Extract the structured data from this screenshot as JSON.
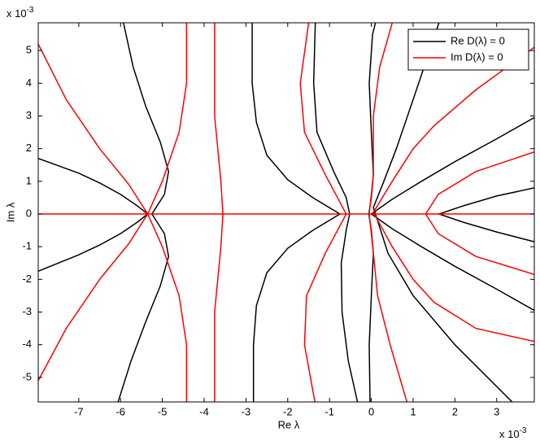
{
  "chart_data": {
    "type": "contour",
    "x_label": "Re λ",
    "y_label": "Im λ",
    "x_multiplier": {
      "base": "x 10",
      "exponent": "-3"
    },
    "y_multiplier": {
      "base": "x 10",
      "exponent": "-3"
    },
    "xlim": [
      -7.97,
      3.9
    ],
    "ylim": [
      -5.75,
      5.85
    ],
    "xticks": [
      -7,
      -6,
      -5,
      -4,
      -3,
      -2,
      -1,
      0,
      1,
      2,
      3
    ],
    "yticks": [
      -5,
      -4,
      -3,
      -2,
      -1,
      0,
      1,
      2,
      3,
      4,
      5
    ],
    "legend": "top-right",
    "series": [
      {
        "name": "Re D(λ) = 0",
        "color": "#000000",
        "curves": [
          {
            "x": [
              -7.97,
              -7,
              -6.5,
              -6,
              -5.6,
              -5.35,
              -5.6,
              -6,
              -6.5,
              -7,
              -7.97
            ],
            "y": [
              1.7,
              1.25,
              0.95,
              0.6,
              0.25,
              0,
              -0.25,
              -0.6,
              -0.95,
              -1.25,
              -1.75
            ]
          },
          {
            "x": [
              -5.93,
              -5.7,
              -5.4,
              -5.05,
              -4.85,
              -4.95,
              -5.25,
              -4.95,
              -4.85,
              -5.05,
              -5.4,
              -5.75,
              -6.06
            ],
            "y": [
              5.85,
              4.5,
              3.3,
              2.2,
              1.3,
              0.6,
              0,
              -0.6,
              -1.3,
              -2.2,
              -3.3,
              -4.5,
              -5.75
            ]
          },
          {
            "x": [
              -2.85,
              -2.85,
              -2.75,
              -2.5,
              -2,
              -1.4,
              -0.75,
              -1.4,
              -2,
              -2.5,
              -2.75,
              -2.82,
              -2.82
            ],
            "y": [
              5.85,
              4,
              2.8,
              1.8,
              1.05,
              0.5,
              0,
              -0.5,
              -1.05,
              -1.8,
              -2.8,
              -4,
              -5.75
            ]
          },
          {
            "x": [
              -1.34,
              -1.38,
              -1.3,
              -0.9,
              -0.6,
              -0.52,
              -0.6,
              -0.72,
              -0.7,
              -0.55,
              -0.33
            ],
            "y": [
              5.85,
              4,
              2.5,
              1.3,
              0.5,
              0,
              -0.5,
              -1.5,
              -3,
              -4.5,
              -5.75
            ]
          },
          {
            "x": [
              0.1,
              0.03,
              -0.05,
              0,
              0.05,
              0,
              -0.06,
              0,
              0.05,
              0,
              -0.05,
              -0.03
            ],
            "y": [
              5.85,
              5.5,
              4,
              2.5,
              1.2,
              0.5,
              0,
              -0.5,
              -1.2,
              -2.5,
              -4,
              -5.75
            ]
          },
          {
            "x": [
              1.62,
              1,
              0.6,
              0.3,
              0.05,
              0.4,
              1,
              2,
              3.37
            ],
            "y": [
              5.85,
              3.5,
              2,
              1,
              0.2,
              -1.2,
              -2.5,
              -4,
              -5.75
            ]
          },
          {
            "x": [
              3.9,
              3,
              2,
              1.2,
              0.5,
              0,
              0.5,
              1.2,
              2,
              3,
              3.9
            ],
            "y": [
              2.95,
              2.3,
              1.6,
              1,
              0.45,
              0,
              -0.45,
              -1,
              -1.6,
              -2.3,
              -2.95
            ]
          },
          {
            "x": [
              3.9,
              3,
              2.2,
              1.62,
              2.2,
              3,
              3.9
            ],
            "y": [
              0.8,
              0.55,
              0.25,
              0,
              -0.25,
              -0.55,
              -0.85
            ]
          }
        ]
      },
      {
        "name": "Im D(λ) = 0",
        "color": "#ff0000",
        "curves": [
          {
            "x": [
              -7.97,
              3.9
            ],
            "y": [
              0,
              0
            ]
          },
          {
            "x": [
              -7.97,
              -7.3,
              -6.5,
              -5.8,
              -5.35,
              -5.8,
              -6.5,
              -7.3,
              -7.97
            ],
            "y": [
              5.2,
              3.5,
              2,
              0.9,
              0,
              -0.9,
              -2,
              -3.5,
              -5.1
            ]
          },
          {
            "x": [
              -4.42,
              -4.42,
              -4.6,
              -5,
              -5.35,
              -5,
              -4.6,
              -4.42,
              -4.42
            ],
            "y": [
              5.85,
              4,
              2.5,
              1,
              0,
              -1,
              -2.5,
              -4,
              -5.75
            ]
          },
          {
            "x": [
              -3.75,
              -3.75,
              -3.6,
              -3.55,
              -3.6,
              -3.75,
              -3.75
            ],
            "y": [
              5.85,
              3,
              1,
              0,
              -1,
              -3,
              -5.75
            ]
          },
          {
            "x": [
              -1.5,
              -1.7,
              -1.6,
              -1.1,
              -0.6,
              -1.1,
              -1.55,
              -1.6,
              -1.35
            ],
            "y": [
              5.85,
              4,
              2.5,
              1.2,
              0,
              -1.2,
              -2.5,
              -4,
              -5.75
            ]
          },
          {
            "x": [
              0.5,
              0.2,
              0.05,
              0.05,
              -0.05,
              0.05,
              0.15,
              0.45,
              0.85
            ],
            "y": [
              5.85,
              4.5,
              3,
              1.2,
              0,
              -1.2,
              -2.5,
              -4,
              -5.75
            ]
          },
          {
            "x": [
              3.9,
              2.5,
              1.5,
              1,
              0.5,
              0.05,
              0.5,
              1,
              1.5,
              2.5,
              3.9
            ],
            "y": [
              5.1,
              3.8,
              2.7,
              2,
              1,
              0.05,
              -1,
              -2,
              -2.7,
              -3.5,
              -3.9
            ]
          },
          {
            "x": [
              3.9,
              2.5,
              1.6,
              1.3,
              1.6,
              2.5,
              3.9
            ],
            "y": [
              1.9,
              1.3,
              0.6,
              0,
              -0.6,
              -1.3,
              -1.85
            ]
          }
        ]
      }
    ]
  }
}
